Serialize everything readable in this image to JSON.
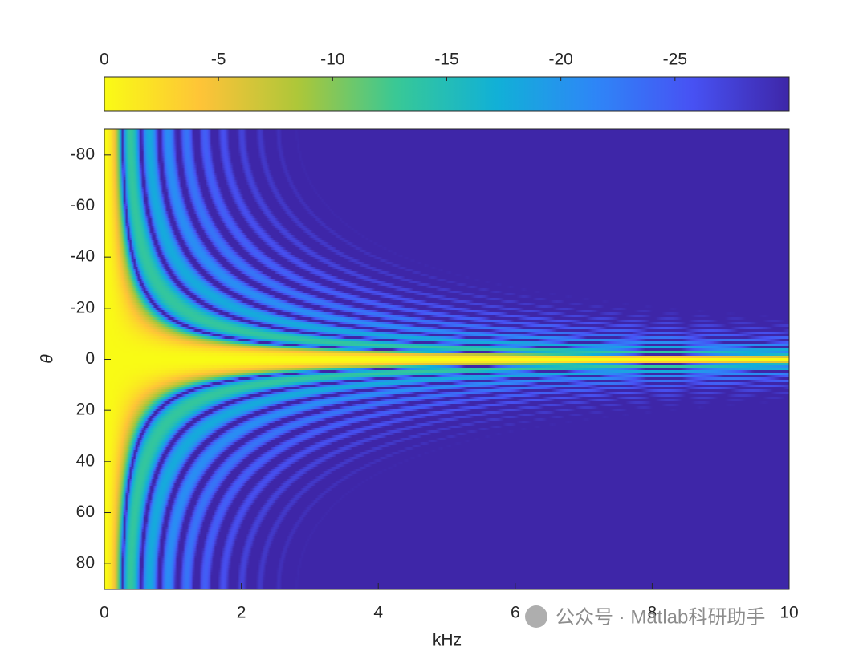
{
  "chart_data": {
    "type": "heatmap",
    "x_label": "kHz",
    "y_label": "θ",
    "xlim": [
      0,
      10
    ],
    "xticks": [
      0,
      2,
      4,
      6,
      8,
      10
    ],
    "ylim": [
      -90,
      90
    ],
    "yticks": [
      -80,
      -60,
      -40,
      -20,
      0,
      20,
      40,
      60,
      80
    ],
    "y_reversed": true,
    "colorbar": {
      "location": "top",
      "lim": [
        0,
        -30
      ],
      "ticks": [
        0,
        -5,
        -10,
        -15,
        -20,
        -25
      ]
    },
    "colormap": [
      "#3e26a8",
      "#4752f4",
      "#2d87f7",
      "#11b1d6",
      "#37c897",
      "#abc739",
      "#fec338",
      "#f9fb15"
    ]
  },
  "watermark": "公众号 · Matlab科研助手"
}
